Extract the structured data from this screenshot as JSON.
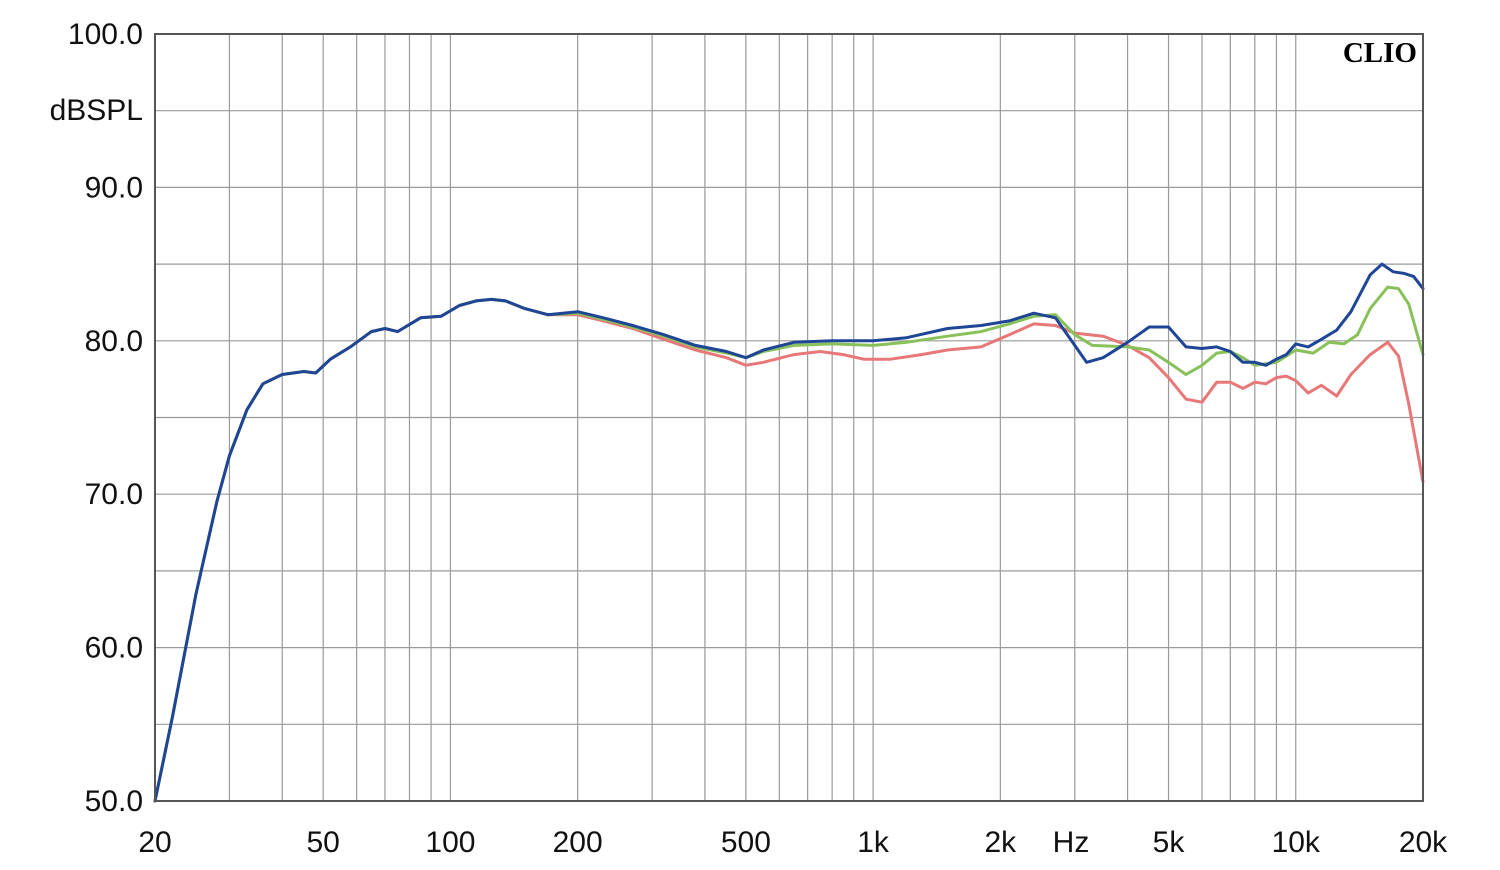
{
  "chart_data": {
    "type": "line",
    "brand": "CLIO",
    "ylabel": "dBSPL",
    "xunit": "Hz",
    "xscale": "log",
    "xlim": [
      20,
      20000
    ],
    "ylim": [
      50,
      100
    ],
    "grid": true,
    "y_ticks": [
      {
        "value": 50,
        "label": "50.0"
      },
      {
        "value": 60,
        "label": "60.0"
      },
      {
        "value": 70,
        "label": "70.0"
      },
      {
        "value": 80,
        "label": "80.0"
      },
      {
        "value": 90,
        "label": "90.0"
      },
      {
        "value": 100,
        "label": "100.0"
      }
    ],
    "x_ticks": [
      {
        "value": 20,
        "label": "20"
      },
      {
        "value": 50,
        "label": "50"
      },
      {
        "value": 100,
        "label": "100"
      },
      {
        "value": 200,
        "label": "200"
      },
      {
        "value": 500,
        "label": "500"
      },
      {
        "value": 1000,
        "label": "1k"
      },
      {
        "value": 2000,
        "label": "2k"
      },
      {
        "value": 5000,
        "label": "5k"
      },
      {
        "value": 10000,
        "label": "10k"
      },
      {
        "value": 20000,
        "label": "20k"
      }
    ],
    "series": [
      {
        "color": "#e87878",
        "points": [
          [
            20,
            50.0
          ],
          [
            22,
            55.5
          ],
          [
            25,
            63.5
          ],
          [
            28,
            69.5
          ],
          [
            30,
            72.5
          ],
          [
            33,
            75.5
          ],
          [
            36,
            77.2
          ],
          [
            40,
            77.8
          ],
          [
            45,
            78.0
          ],
          [
            48,
            77.9
          ],
          [
            52,
            78.8
          ],
          [
            58,
            79.6
          ],
          [
            65,
            80.6
          ],
          [
            70,
            80.8
          ],
          [
            75,
            80.6
          ],
          [
            85,
            81.5
          ],
          [
            95,
            81.6
          ],
          [
            105,
            82.3
          ],
          [
            115,
            82.6
          ],
          [
            125,
            82.7
          ],
          [
            135,
            82.6
          ],
          [
            150,
            82.1
          ],
          [
            170,
            81.7
          ],
          [
            200,
            81.7
          ],
          [
            230,
            81.3
          ],
          [
            270,
            80.8
          ],
          [
            320,
            80.1
          ],
          [
            380,
            79.4
          ],
          [
            450,
            78.9
          ],
          [
            500,
            78.4
          ],
          [
            550,
            78.6
          ],
          [
            650,
            79.1
          ],
          [
            750,
            79.3
          ],
          [
            850,
            79.1
          ],
          [
            950,
            78.8
          ],
          [
            1100,
            78.8
          ],
          [
            1300,
            79.1
          ],
          [
            1500,
            79.4
          ],
          [
            1800,
            79.6
          ],
          [
            2100,
            80.4
          ],
          [
            2400,
            81.1
          ],
          [
            2700,
            81.0
          ],
          [
            3000,
            80.5
          ],
          [
            3500,
            80.3
          ],
          [
            4000,
            79.7
          ],
          [
            4500,
            78.9
          ],
          [
            5000,
            77.6
          ],
          [
            5500,
            76.2
          ],
          [
            6000,
            76.0
          ],
          [
            6500,
            77.3
          ],
          [
            7000,
            77.3
          ],
          [
            7500,
            76.9
          ],
          [
            8000,
            77.3
          ],
          [
            8500,
            77.2
          ],
          [
            9000,
            77.6
          ],
          [
            9500,
            77.7
          ],
          [
            10000,
            77.4
          ],
          [
            10700,
            76.6
          ],
          [
            11500,
            77.1
          ],
          [
            12500,
            76.4
          ],
          [
            13500,
            77.8
          ],
          [
            15000,
            79.1
          ],
          [
            16500,
            79.9
          ],
          [
            17500,
            79.0
          ],
          [
            18500,
            75.9
          ],
          [
            20000,
            70.8
          ]
        ]
      },
      {
        "color": "#88c15a",
        "points": [
          [
            20,
            50.0
          ],
          [
            22,
            55.5
          ],
          [
            25,
            63.5
          ],
          [
            28,
            69.5
          ],
          [
            30,
            72.5
          ],
          [
            33,
            75.5
          ],
          [
            36,
            77.2
          ],
          [
            40,
            77.8
          ],
          [
            45,
            78.0
          ],
          [
            48,
            77.9
          ],
          [
            52,
            78.8
          ],
          [
            58,
            79.6
          ],
          [
            65,
            80.6
          ],
          [
            70,
            80.8
          ],
          [
            75,
            80.6
          ],
          [
            85,
            81.5
          ],
          [
            95,
            81.6
          ],
          [
            105,
            82.3
          ],
          [
            115,
            82.6
          ],
          [
            125,
            82.7
          ],
          [
            135,
            82.6
          ],
          [
            150,
            82.1
          ],
          [
            170,
            81.7
          ],
          [
            200,
            81.8
          ],
          [
            230,
            81.4
          ],
          [
            270,
            80.9
          ],
          [
            320,
            80.3
          ],
          [
            380,
            79.6
          ],
          [
            450,
            79.2
          ],
          [
            500,
            78.9
          ],
          [
            550,
            79.3
          ],
          [
            650,
            79.7
          ],
          [
            800,
            79.8
          ],
          [
            1000,
            79.7
          ],
          [
            1200,
            79.9
          ],
          [
            1500,
            80.3
          ],
          [
            1800,
            80.6
          ],
          [
            2100,
            81.1
          ],
          [
            2400,
            81.6
          ],
          [
            2700,
            81.7
          ],
          [
            3000,
            80.4
          ],
          [
            3300,
            79.7
          ],
          [
            4000,
            79.6
          ],
          [
            4500,
            79.4
          ],
          [
            5000,
            78.6
          ],
          [
            5500,
            77.8
          ],
          [
            6000,
            78.4
          ],
          [
            6500,
            79.2
          ],
          [
            7000,
            79.3
          ],
          [
            7500,
            78.9
          ],
          [
            8000,
            78.4
          ],
          [
            9000,
            78.6
          ],
          [
            10000,
            79.4
          ],
          [
            11000,
            79.2
          ],
          [
            12000,
            79.9
          ],
          [
            13000,
            79.8
          ],
          [
            14000,
            80.4
          ],
          [
            15000,
            82.1
          ],
          [
            16500,
            83.5
          ],
          [
            17500,
            83.4
          ],
          [
            18500,
            82.4
          ],
          [
            20000,
            79.1
          ]
        ]
      },
      {
        "color": "#1f4596",
        "points": [
          [
            20,
            50.0
          ],
          [
            22,
            55.5
          ],
          [
            25,
            63.5
          ],
          [
            28,
            69.5
          ],
          [
            30,
            72.5
          ],
          [
            33,
            75.5
          ],
          [
            36,
            77.2
          ],
          [
            40,
            77.8
          ],
          [
            45,
            78.0
          ],
          [
            48,
            77.9
          ],
          [
            52,
            78.8
          ],
          [
            58,
            79.6
          ],
          [
            65,
            80.6
          ],
          [
            70,
            80.8
          ],
          [
            75,
            80.6
          ],
          [
            85,
            81.5
          ],
          [
            95,
            81.6
          ],
          [
            105,
            82.3
          ],
          [
            115,
            82.6
          ],
          [
            125,
            82.7
          ],
          [
            135,
            82.6
          ],
          [
            150,
            82.1
          ],
          [
            170,
            81.7
          ],
          [
            200,
            81.9
          ],
          [
            230,
            81.5
          ],
          [
            270,
            81.0
          ],
          [
            320,
            80.4
          ],
          [
            380,
            79.7
          ],
          [
            450,
            79.3
          ],
          [
            500,
            78.9
          ],
          [
            550,
            79.4
          ],
          [
            650,
            79.9
          ],
          [
            800,
            80.0
          ],
          [
            1000,
            80.0
          ],
          [
            1200,
            80.2
          ],
          [
            1500,
            80.8
          ],
          [
            1800,
            81.0
          ],
          [
            2100,
            81.3
          ],
          [
            2400,
            81.8
          ],
          [
            2700,
            81.5
          ],
          [
            3000,
            79.7
          ],
          [
            3200,
            78.6
          ],
          [
            3500,
            78.9
          ],
          [
            4000,
            79.9
          ],
          [
            4500,
            80.9
          ],
          [
            5000,
            80.9
          ],
          [
            5500,
            79.6
          ],
          [
            6000,
            79.5
          ],
          [
            6500,
            79.6
          ],
          [
            7000,
            79.3
          ],
          [
            7500,
            78.6
          ],
          [
            8000,
            78.6
          ],
          [
            8500,
            78.4
          ],
          [
            9000,
            78.8
          ],
          [
            9500,
            79.1
          ],
          [
            10000,
            79.8
          ],
          [
            10700,
            79.6
          ],
          [
            11500,
            80.1
          ],
          [
            12500,
            80.7
          ],
          [
            13500,
            81.9
          ],
          [
            15000,
            84.3
          ],
          [
            16000,
            85.0
          ],
          [
            17000,
            84.5
          ],
          [
            18000,
            84.4
          ],
          [
            19000,
            84.2
          ],
          [
            20000,
            83.4
          ]
        ]
      }
    ]
  }
}
